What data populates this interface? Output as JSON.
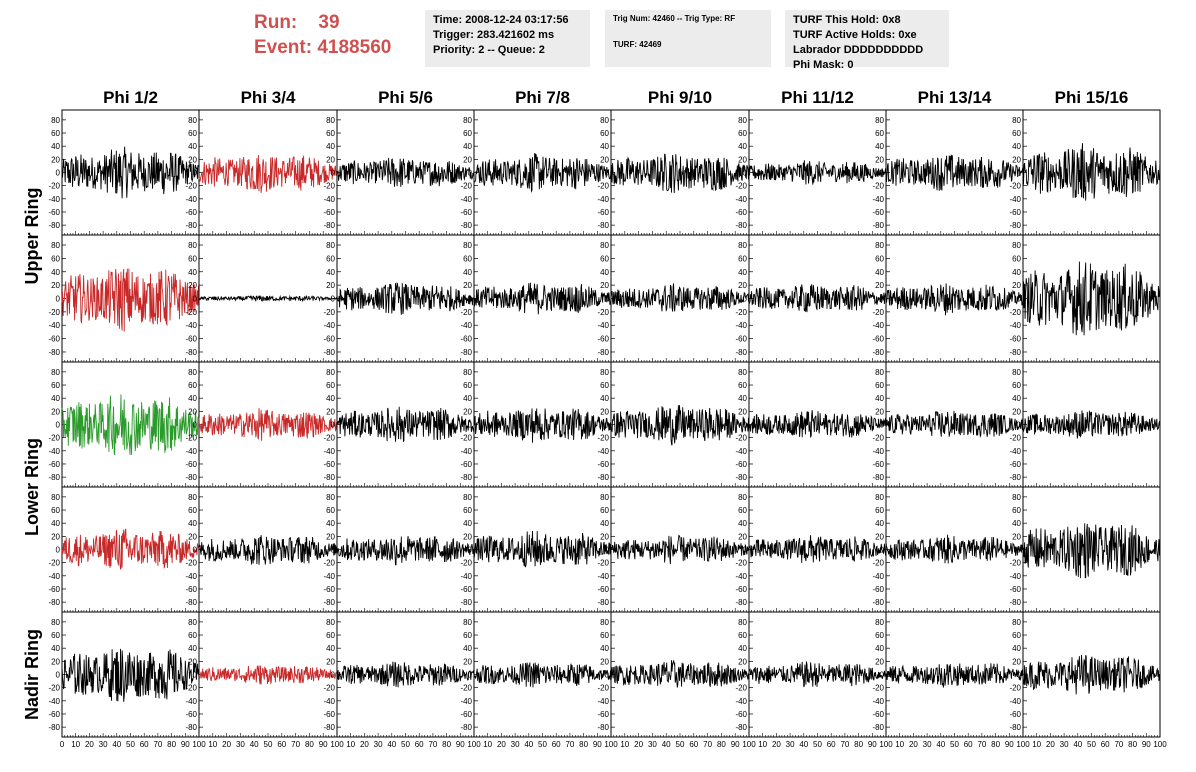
{
  "header": {
    "run_label": "Run:",
    "run_value": "39",
    "event_label": "Event:",
    "event_value": "4188560"
  },
  "info_time": {
    "time": "Time: 2008-12-24 03:17:56",
    "trigger": "Trigger: 283.421602 ms",
    "priority": "Priority: 2 -- Queue: 2"
  },
  "info_trig": {
    "trig": "Trig Num: 42460 -- Trig Type: RF",
    "turf": "TURF: 42469"
  },
  "info_turf": {
    "this_hold": "TURF This Hold: 0x8",
    "active_holds": "TURF Active Holds: 0xe",
    "labrador": "Labrador DDDDDDDDDD",
    "phi_mask": "Phi Mask: 0"
  },
  "colors": {
    "normal": "#000000",
    "triggered": "#c82828",
    "max": "#2a9a2a",
    "info_bg": "#ececec",
    "run_text": "#d05050"
  },
  "chart_data": {
    "type": "line",
    "title": "",
    "columns": [
      "Phi 1/2",
      "Phi 3/4",
      "Phi 5/6",
      "Phi 7/8",
      "Phi 9/10",
      "Phi 11/12",
      "Phi 13/14",
      "Phi 15/16"
    ],
    "rows": [
      "Upper Ring",
      "Upper Ring",
      "Lower Ring",
      "Lower Ring",
      "Nadir Ring"
    ],
    "row_labels": [
      "Upper Ring",
      "Lower Ring",
      "Nadir Ring"
    ],
    "xlim": [
      0,
      100
    ],
    "ylim": [
      -95,
      95
    ],
    "y_ticks": [
      -80,
      -60,
      -40,
      -20,
      0,
      20,
      40,
      60,
      80
    ],
    "x_ticks_first": [
      "0",
      "10",
      "20",
      "30",
      "40",
      "50",
      "60",
      "70",
      "80",
      "90",
      "100"
    ],
    "x_ticks_other": [
      "10",
      "20",
      "30",
      "40",
      "50",
      "60",
      "70",
      "80",
      "90",
      "100"
    ],
    "grid": false,
    "amplitudes": [
      [
        35,
        28,
        22,
        26,
        28,
        17,
        26,
        40
      ],
      [
        45,
        4,
        22,
        22,
        20,
        20,
        22,
        52
      ],
      [
        45,
        22,
        25,
        25,
        28,
        20,
        20,
        20
      ],
      [
        30,
        22,
        22,
        26,
        20,
        20,
        20,
        40
      ],
      [
        40,
        14,
        18,
        18,
        20,
        18,
        18,
        28
      ]
    ],
    "trace_colors": [
      [
        "normal",
        "triggered",
        "normal",
        "normal",
        "normal",
        "normal",
        "normal",
        "normal"
      ],
      [
        "triggered",
        "normal",
        "normal",
        "normal",
        "normal",
        "normal",
        "normal",
        "normal"
      ],
      [
        "max",
        "triggered",
        "normal",
        "normal",
        "normal",
        "normal",
        "normal",
        "normal"
      ],
      [
        "triggered",
        "normal",
        "normal",
        "normal",
        "normal",
        "normal",
        "normal",
        "normal"
      ],
      [
        "normal",
        "triggered",
        "normal",
        "normal",
        "normal",
        "normal",
        "normal",
        "normal"
      ]
    ]
  }
}
